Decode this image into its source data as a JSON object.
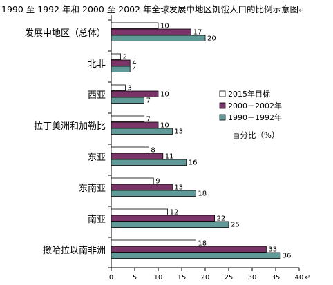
{
  "chart_data": {
    "type": "bar",
    "orientation": "horizontal",
    "title": "1990 至 1992 年和 2000 至 2002 年全球发展中地区饥饿人口的比例示意图",
    "title_mark": "↵",
    "categories": [
      "发展中地区（总体）",
      "北非",
      "西亚",
      "拉丁美洲和加勒比",
      "东亚",
      "东南亚",
      "南亚",
      "撒哈拉以南非洲"
    ],
    "series": [
      {
        "name": "2015年目标",
        "color": "#ffffff",
        "values": [
          10,
          2,
          3,
          7,
          8,
          9,
          12,
          18
        ]
      },
      {
        "name": "2000－2002年",
        "color": "#7b3468",
        "values": [
          17,
          4,
          10,
          10,
          11,
          13,
          22,
          33
        ]
      },
      {
        "name": "1990－1992年",
        "color": "#5f9a98",
        "values": [
          20,
          4,
          7,
          13,
          16,
          18,
          25,
          36
        ]
      }
    ],
    "xlim": [
      0,
      40
    ],
    "xticks": [
      0,
      5,
      10,
      15,
      20,
      25,
      30,
      35,
      40
    ],
    "tick_mark": "↵",
    "unit_label": "百分比（%）",
    "legend_position": "right-middle",
    "grid": false
  }
}
